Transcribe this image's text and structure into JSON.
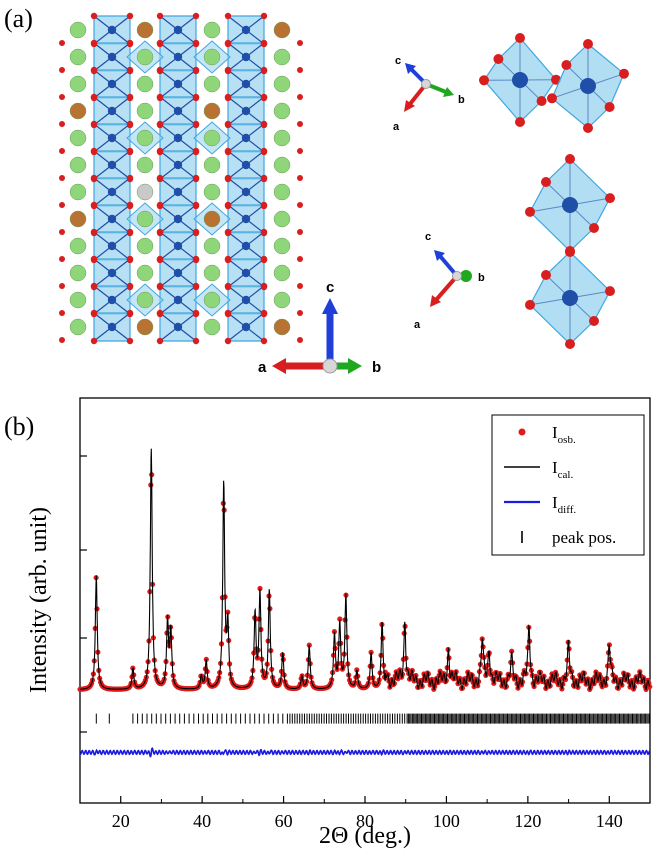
{
  "panel_a": {
    "label": "(a)",
    "axes_main": {
      "a": "a",
      "b": "b",
      "c": "c"
    },
    "axes_top": {
      "a": "a",
      "b": "b",
      "c": "c"
    },
    "axes_bottom": {
      "a": "a",
      "b": "b",
      "c": "c"
    },
    "colors": {
      "octahedron": "#3fa6e0",
      "octahedron_fill": "#9fd6f0",
      "b_site": "#1f4fa8",
      "oxygen": "#d81e1e",
      "a_site_green": "#8fd67a",
      "a_site_brown": "#b87333",
      "a_site_grey": "#c9c9c9",
      "axis_a": "#d81e1e",
      "axis_b": "#1fa81f",
      "axis_c": "#1f3fd8"
    }
  },
  "panel_b": {
    "label": "(b)",
    "legend": [
      {
        "key": "obs",
        "text": "I",
        "sub": "osb."
      },
      {
        "key": "cal",
        "text": "I",
        "sub": "cal."
      },
      {
        "key": "diff",
        "text": "I",
        "sub": "diff."
      },
      {
        "key": "pos",
        "text": "peak pos.",
        "sub": ""
      }
    ],
    "colors": {
      "obs": "#e01a1a",
      "cal": "#000000",
      "diff": "#1a1ae0",
      "pos": "#000000"
    }
  },
  "chart_data": {
    "type": "scatter",
    "xlabel": "2Θ (deg.)",
    "ylabel": "Intensity (arb. unit)",
    "xlim": [
      10,
      150
    ],
    "xticks": [
      20,
      40,
      60,
      80,
      100,
      120,
      140
    ],
    "xtick_labels": [
      "20",
      "40",
      "60",
      "80",
      "100",
      "120",
      "140"
    ],
    "ylim": [
      -0.25,
      1.05
    ],
    "baseline": 0.0,
    "peaks": [
      {
        "x": 14.0,
        "h": 0.44
      },
      {
        "x": 23.0,
        "h": 0.08
      },
      {
        "x": 27.5,
        "h": 0.93
      },
      {
        "x": 31.5,
        "h": 0.26
      },
      {
        "x": 32.3,
        "h": 0.22
      },
      {
        "x": 39.8,
        "h": 0.05
      },
      {
        "x": 41.0,
        "h": 0.11
      },
      {
        "x": 45.3,
        "h": 0.79
      },
      {
        "x": 46.3,
        "h": 0.24
      },
      {
        "x": 53.0,
        "h": 0.29
      },
      {
        "x": 54.2,
        "h": 0.37
      },
      {
        "x": 56.5,
        "h": 0.38
      },
      {
        "x": 59.8,
        "h": 0.14
      },
      {
        "x": 64.5,
        "h": 0.05
      },
      {
        "x": 66.3,
        "h": 0.17
      },
      {
        "x": 72.5,
        "h": 0.21
      },
      {
        "x": 73.8,
        "h": 0.25
      },
      {
        "x": 75.3,
        "h": 0.36
      },
      {
        "x": 78.0,
        "h": 0.07
      },
      {
        "x": 81.5,
        "h": 0.14
      },
      {
        "x": 84.2,
        "h": 0.26
      },
      {
        "x": 89.8,
        "h": 0.24
      },
      {
        "x": 100.5,
        "h": 0.13
      },
      {
        "x": 108.8,
        "h": 0.16
      },
      {
        "x": 110.5,
        "h": 0.13
      },
      {
        "x": 116.0,
        "h": 0.08
      },
      {
        "x": 120.3,
        "h": 0.21
      },
      {
        "x": 130.0,
        "h": 0.13
      },
      {
        "x": 140.0,
        "h": 0.14
      }
    ],
    "difference_offset": -0.24,
    "peak_positions_y": -0.11
  }
}
